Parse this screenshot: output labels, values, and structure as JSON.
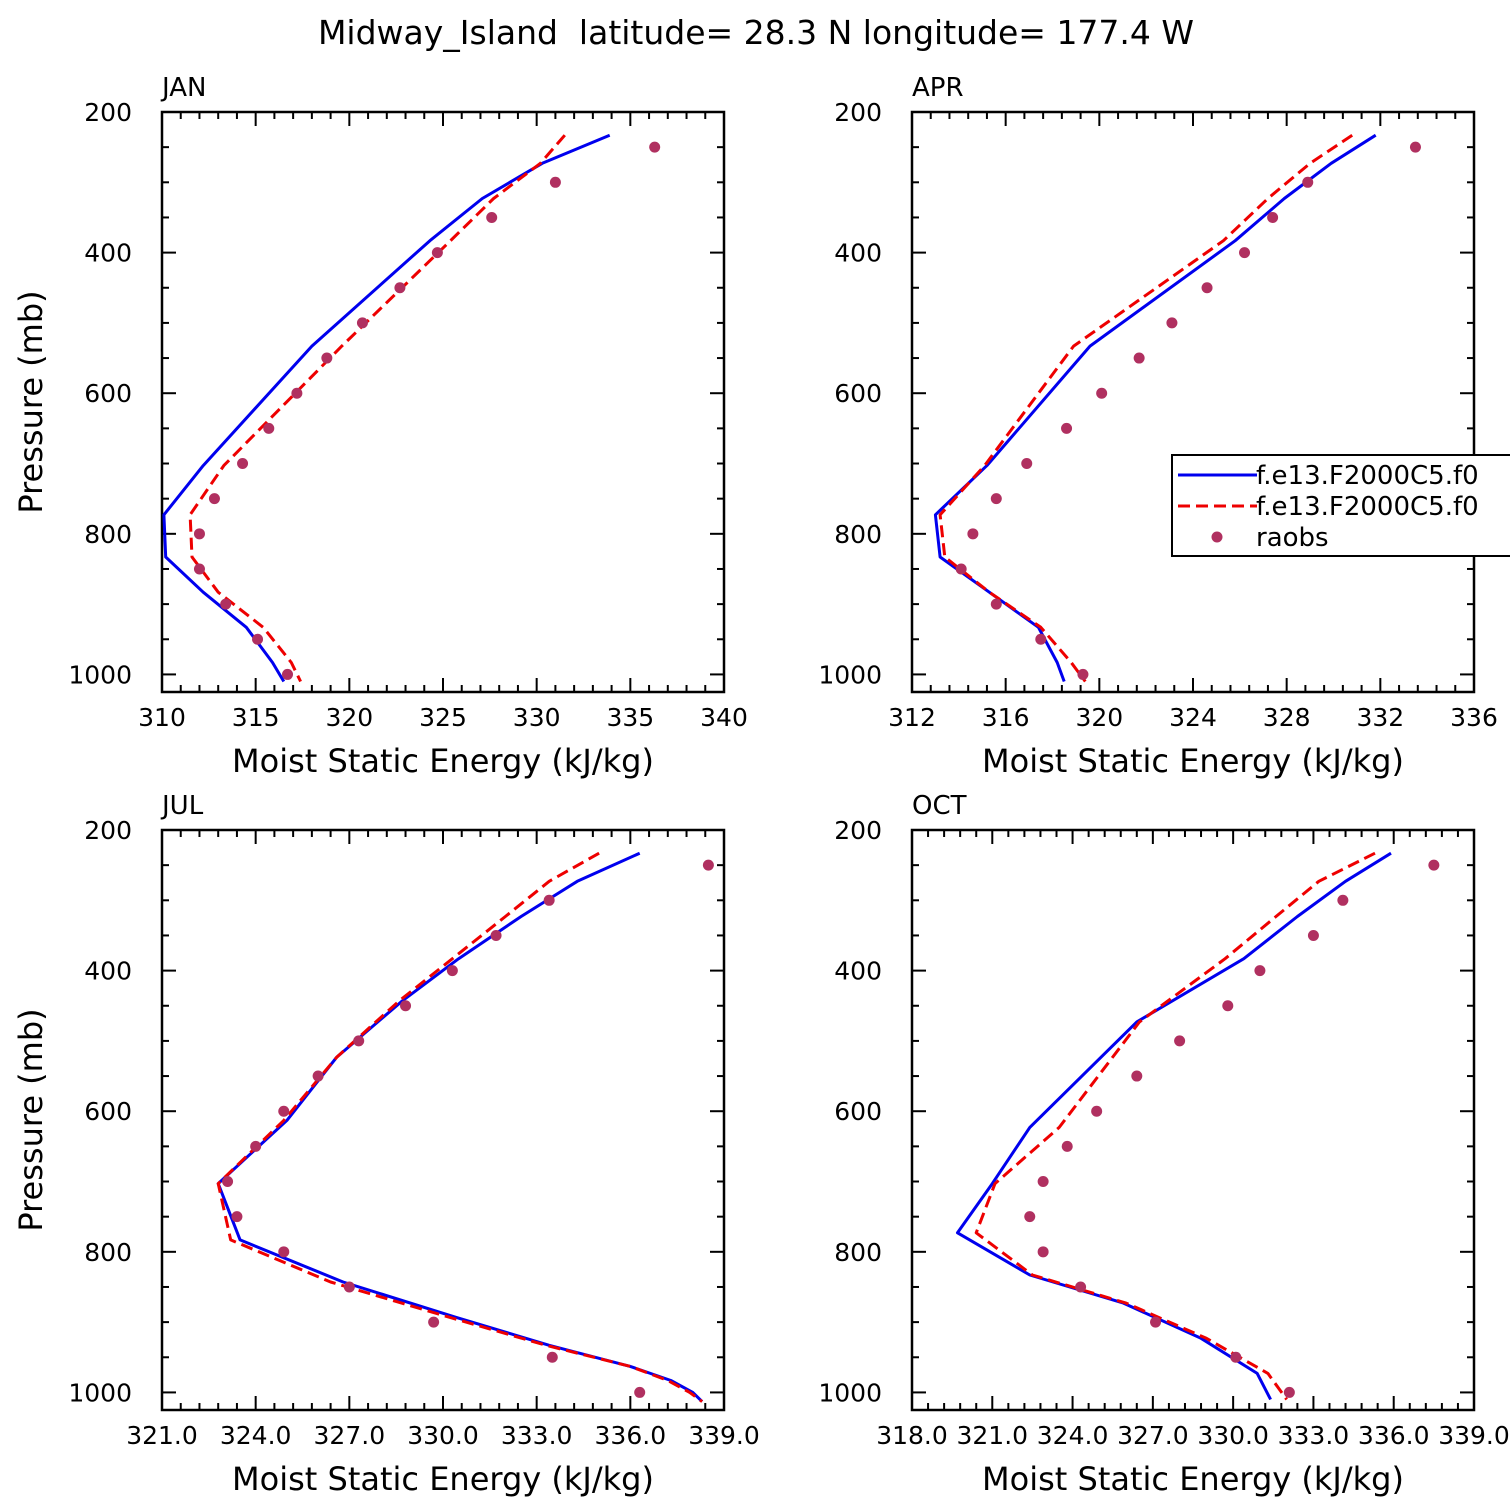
{
  "figure_title": "Midway_Island  latitude= 28.3 N longitude= 177.4 W",
  "legend": [
    {
      "label": "f.e13.F2000C5.f0",
      "style": "solid",
      "color": "#0000ee"
    },
    {
      "label": "f.e13.F2000C5.f0",
      "style": "dashed",
      "color": "#ee0000"
    },
    {
      "label": "raobs",
      "style": "marker",
      "color": "#b03060"
    }
  ],
  "chart_data": [
    {
      "type": "line",
      "panel": "JAN",
      "title": "JAN",
      "xlabel": "Moist Static Energy (kJ/kg)",
      "ylabel": "Pressure (mb)",
      "xlim": [
        310,
        340
      ],
      "ylim": [
        200,
        1025
      ],
      "y_inverted": true,
      "xticks": [
        310,
        315,
        320,
        325,
        330,
        335,
        340
      ],
      "xtick_labels": [
        "310",
        "315",
        "320",
        "325",
        "330",
        "335",
        "340"
      ],
      "yticks": [
        200,
        400,
        600,
        800,
        1000
      ],
      "ytick_labels": [
        "200",
        "400",
        "600",
        "800",
        "1000"
      ],
      "series": [
        {
          "style": "solid",
          "color": "#0000ee",
          "x": [
            333.9,
            330.3,
            327.1,
            324.3,
            318.0,
            312.2,
            310.1,
            310.2,
            312.2,
            314.5,
            315.9,
            316.5
          ],
          "y": [
            233,
            273,
            323,
            383,
            533,
            703,
            773,
            833,
            883,
            933,
            983,
            1010
          ]
        },
        {
          "style": "dashed",
          "color": "#ee0000",
          "x": [
            331.5,
            330.2,
            327.7,
            325.4,
            319.6,
            313.3,
            311.5,
            311.6,
            313.0,
            315.4,
            316.9,
            317.4
          ],
          "y": [
            233,
            273,
            323,
            383,
            533,
            703,
            773,
            833,
            883,
            933,
            983,
            1010
          ]
        },
        {
          "style": "marker",
          "color": "#b03060",
          "x": [
            336.3,
            331.0,
            327.6,
            324.7,
            322.7,
            320.7,
            318.8,
            317.2,
            315.7,
            314.3,
            312.8,
            312.0,
            312.0,
            313.4,
            315.1,
            316.7
          ],
          "y": [
            250,
            300,
            350,
            400,
            450,
            500,
            550,
            600,
            650,
            700,
            750,
            800,
            850,
            900,
            950,
            1000
          ]
        }
      ]
    },
    {
      "type": "line",
      "panel": "APR",
      "title": "APR",
      "xlabel": "Moist Static Energy (kJ/kg)",
      "ylabel": "",
      "xlim": [
        312,
        336
      ],
      "ylim": [
        200,
        1025
      ],
      "y_inverted": true,
      "xticks": [
        312,
        316,
        320,
        324,
        328,
        332,
        336
      ],
      "xtick_labels": [
        "312",
        "316",
        "320",
        "324",
        "328",
        "332",
        "336"
      ],
      "yticks": [
        200,
        400,
        600,
        800,
        1000
      ],
      "ytick_labels": [
        "200",
        "400",
        "600",
        "800",
        "1000"
      ],
      "has_legend": true,
      "series": [
        {
          "style": "solid",
          "color": "#0000ee",
          "x": [
            331.8,
            329.9,
            327.9,
            325.8,
            319.6,
            315.2,
            313.0,
            313.2,
            315.3,
            317.4,
            318.2,
            318.5
          ],
          "y": [
            233,
            273,
            323,
            383,
            533,
            703,
            773,
            833,
            883,
            933,
            983,
            1010
          ]
        },
        {
          "style": "dashed",
          "color": "#ee0000",
          "x": [
            330.8,
            329.0,
            327.2,
            325.3,
            318.9,
            315.1,
            313.2,
            313.4,
            315.3,
            317.5,
            318.8,
            319.4
          ],
          "y": [
            233,
            273,
            323,
            383,
            533,
            703,
            773,
            833,
            883,
            933,
            983,
            1010
          ]
        },
        {
          "style": "marker",
          "color": "#b03060",
          "x": [
            333.5,
            328.9,
            327.4,
            326.2,
            324.6,
            323.1,
            321.7,
            320.1,
            318.6,
            316.9,
            315.6,
            314.6,
            314.1,
            315.6,
            317.5,
            319.3
          ],
          "y": [
            250,
            300,
            350,
            400,
            450,
            500,
            550,
            600,
            650,
            700,
            750,
            800,
            850,
            900,
            950,
            1000
          ]
        }
      ]
    },
    {
      "type": "line",
      "panel": "JUL",
      "title": "JUL",
      "xlabel": "Moist Static Energy (kJ/kg)",
      "ylabel": "Pressure (mb)",
      "xlim": [
        321,
        339
      ],
      "ylim": [
        200,
        1025
      ],
      "y_inverted": true,
      "xticks": [
        321,
        324,
        327,
        330,
        333,
        336,
        339
      ],
      "xtick_labels": [
        "321.0",
        "324.0",
        "327.0",
        "330.0",
        "333.0",
        "336.0",
        "339.0"
      ],
      "yticks": [
        200,
        400,
        600,
        800,
        1000
      ],
      "ytick_labels": [
        "200",
        "400",
        "600",
        "800",
        "1000"
      ],
      "series": [
        {
          "style": "solid",
          "color": "#0000ee",
          "x": [
            336.3,
            334.3,
            332.5,
            330.5,
            328.7,
            326.6,
            325.0,
            322.8,
            323.5,
            326.8,
            330.4,
            333.4,
            336.0,
            337.3,
            338.0,
            338.3
          ],
          "y": [
            233,
            273,
            323,
            383,
            443,
            523,
            613,
            703,
            783,
            843,
            893,
            933,
            963,
            983,
            1000,
            1013
          ]
        },
        {
          "style": "dashed",
          "color": "#ee0000",
          "x": [
            335.0,
            333.4,
            332.0,
            330.3,
            328.6,
            326.6,
            324.9,
            322.8,
            323.2,
            326.4,
            330.2,
            333.3,
            336.0,
            337.2,
            337.9,
            338.3
          ],
          "y": [
            233,
            273,
            323,
            383,
            443,
            523,
            613,
            703,
            783,
            843,
            893,
            933,
            963,
            983,
            1000,
            1013
          ]
        },
        {
          "style": "marker",
          "color": "#b03060",
          "x": [
            338.5,
            333.4,
            331.7,
            330.3,
            328.8,
            327.3,
            326.0,
            324.9,
            324.0,
            323.1,
            323.4,
            324.9,
            327.0,
            329.7,
            333.5,
            336.3
          ],
          "y": [
            250,
            300,
            350,
            400,
            450,
            500,
            550,
            600,
            650,
            700,
            750,
            800,
            850,
            900,
            950,
            1000
          ]
        }
      ]
    },
    {
      "type": "line",
      "panel": "OCT",
      "title": "OCT",
      "xlabel": "Moist Static Energy (kJ/kg)",
      "ylabel": "",
      "xlim": [
        318,
        339
      ],
      "ylim": [
        200,
        1025
      ],
      "y_inverted": true,
      "xticks": [
        318,
        321,
        324,
        327,
        330,
        333,
        336,
        339
      ],
      "xtick_labels": [
        "318.0",
        "321.0",
        "324.0",
        "327.0",
        "330.0",
        "333.0",
        "336.0",
        "339.0"
      ],
      "yticks": [
        200,
        400,
        600,
        800,
        1000
      ],
      "ytick_labels": [
        "200",
        "400",
        "600",
        "800",
        "1000"
      ],
      "series": [
        {
          "style": "solid",
          "color": "#0000ee",
          "x": [
            335.9,
            334.2,
            332.4,
            330.4,
            326.4,
            322.4,
            321.0,
            319.7,
            322.4,
            325.9,
            328.8,
            330.9,
            331.4
          ],
          "y": [
            233,
            273,
            323,
            383,
            473,
            623,
            703,
            773,
            833,
            873,
            923,
            973,
            1010
          ]
        },
        {
          "style": "dashed",
          "color": "#ee0000",
          "x": [
            335.3,
            333.2,
            331.6,
            329.7,
            326.5,
            323.5,
            321.1,
            320.4,
            322.5,
            326.0,
            329.0,
            331.3,
            332.0
          ],
          "y": [
            233,
            273,
            323,
            383,
            473,
            623,
            703,
            773,
            833,
            873,
            923,
            973,
            1010
          ]
        },
        {
          "style": "marker",
          "color": "#b03060",
          "x": [
            337.5,
            334.1,
            333.0,
            331.0,
            329.8,
            328.0,
            326.4,
            324.9,
            323.8,
            322.9,
            322.4,
            322.9,
            324.3,
            327.1,
            330.1,
            332.1
          ],
          "y": [
            250,
            300,
            350,
            400,
            450,
            500,
            550,
            600,
            650,
            700,
            750,
            800,
            850,
            900,
            950,
            1000
          ]
        }
      ]
    }
  ]
}
